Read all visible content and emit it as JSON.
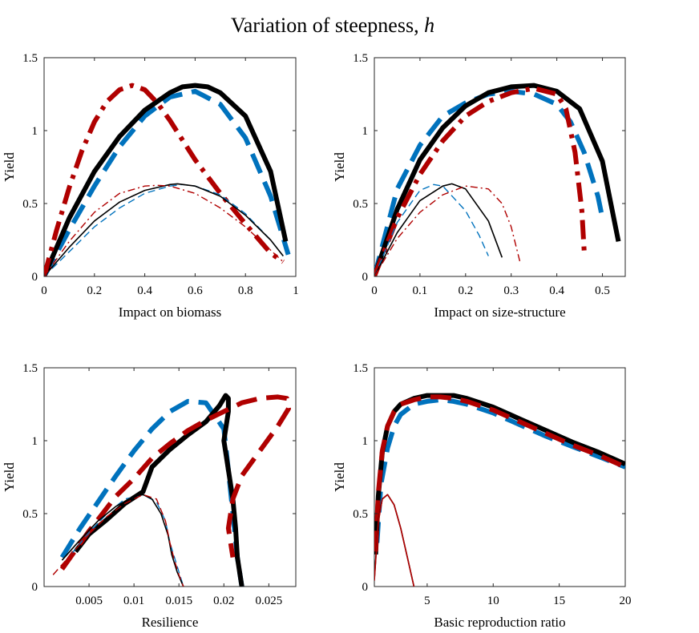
{
  "figure": {
    "title_prefix": "Variation of steepness, ",
    "title_symbol": "h"
  },
  "colors": {
    "black": "#000000",
    "blue": "#0072bd",
    "red": "#b00000"
  },
  "chart_data": [
    {
      "type": "line",
      "xlabel": "Impact on biomass",
      "ylabel": "Yield",
      "xlim": [
        0,
        1
      ],
      "ylim": [
        0,
        1.5
      ],
      "xticks": [
        0,
        0.2,
        0.4,
        0.6,
        0.8,
        1
      ],
      "xtick_labels": [
        "0",
        "0.2",
        "0.4",
        "0.6",
        "0.8",
        "1"
      ],
      "yticks": [
        0,
        0.5,
        1,
        1.5
      ],
      "ytick_labels": [
        "0",
        "0.5",
        "1",
        "1.5"
      ],
      "series": [
        {
          "name": "blue-dashed-thick",
          "color": "blue",
          "style": "dashed-thick",
          "x": [
            0,
            0.1,
            0.2,
            0.3,
            0.4,
            0.5,
            0.6,
            0.7,
            0.8,
            0.9,
            0.97
          ],
          "y": [
            0,
            0.32,
            0.62,
            0.89,
            1.1,
            1.23,
            1.27,
            1.18,
            0.95,
            0.55,
            0.15
          ]
        },
        {
          "name": "black-solid-thick",
          "color": "black",
          "style": "solid-thick",
          "x": [
            0,
            0.1,
            0.2,
            0.3,
            0.4,
            0.5,
            0.55,
            0.6,
            0.65,
            0.7,
            0.8,
            0.9,
            0.96
          ],
          "y": [
            0,
            0.4,
            0.72,
            0.96,
            1.14,
            1.26,
            1.3,
            1.31,
            1.3,
            1.26,
            1.1,
            0.72,
            0.24
          ]
        },
        {
          "name": "red-dashdot-thick",
          "color": "red",
          "style": "dashdot-thick",
          "x": [
            0,
            0.05,
            0.1,
            0.15,
            0.2,
            0.25,
            0.3,
            0.35,
            0.4,
            0.45,
            0.5,
            0.6,
            0.7,
            0.8,
            0.9,
            0.95
          ],
          "y": [
            0,
            0.32,
            0.61,
            0.86,
            1.06,
            1.2,
            1.28,
            1.31,
            1.28,
            1.19,
            1.07,
            0.8,
            0.57,
            0.36,
            0.16,
            0.1
          ]
        },
        {
          "name": "blue-dashed-thin",
          "color": "blue",
          "style": "dashed-thin",
          "x": [
            0,
            0.1,
            0.2,
            0.3,
            0.4,
            0.5,
            0.55,
            0.6,
            0.7,
            0.8,
            0.9,
            0.95
          ],
          "y": [
            0,
            0.17,
            0.34,
            0.47,
            0.57,
            0.62,
            0.63,
            0.62,
            0.56,
            0.43,
            0.25,
            0.14
          ]
        },
        {
          "name": "black-solid-thin",
          "color": "black",
          "style": "solid-thin",
          "x": [
            0,
            0.1,
            0.2,
            0.3,
            0.4,
            0.5,
            0.53,
            0.6,
            0.7,
            0.8,
            0.9,
            0.95
          ],
          "y": [
            0,
            0.2,
            0.38,
            0.51,
            0.59,
            0.63,
            0.635,
            0.62,
            0.55,
            0.42,
            0.25,
            0.14
          ]
        },
        {
          "name": "red-dashdot-thin",
          "color": "red",
          "style": "dashdot-thin",
          "x": [
            0,
            0.1,
            0.2,
            0.3,
            0.4,
            0.45,
            0.5,
            0.6,
            0.7,
            0.8,
            0.9,
            0.95
          ],
          "y": [
            0,
            0.24,
            0.44,
            0.57,
            0.62,
            0.625,
            0.62,
            0.57,
            0.47,
            0.34,
            0.18,
            0.1
          ]
        }
      ]
    },
    {
      "type": "line",
      "xlabel": "Impact on size-structure",
      "ylabel": "Yield",
      "xlim": [
        0,
        0.55
      ],
      "ylim": [
        0,
        1.5
      ],
      "xticks": [
        0,
        0.1,
        0.2,
        0.3,
        0.4,
        0.5
      ],
      "xtick_labels": [
        "0",
        "0.1",
        "0.2",
        "0.3",
        "0.4",
        "0.5"
      ],
      "yticks": [
        0,
        0.5,
        1,
        1.5
      ],
      "ytick_labels": [
        "0",
        "0.5",
        "1",
        "1.5"
      ],
      "series": [
        {
          "name": "blue-dashed-thick",
          "color": "blue",
          "style": "dashed-thick",
          "x": [
            0,
            0.05,
            0.1,
            0.15,
            0.2,
            0.25,
            0.3,
            0.35,
            0.4,
            0.43,
            0.46,
            0.49,
            0.5
          ],
          "y": [
            0,
            0.6,
            0.9,
            1.1,
            1.19,
            1.25,
            1.27,
            1.25,
            1.18,
            1.06,
            0.85,
            0.55,
            0.4
          ]
        },
        {
          "name": "black-solid-thick",
          "color": "black",
          "style": "solid-thick",
          "x": [
            0,
            0.05,
            0.1,
            0.15,
            0.2,
            0.25,
            0.3,
            0.35,
            0.4,
            0.45,
            0.5,
            0.535
          ],
          "y": [
            0,
            0.46,
            0.8,
            1.02,
            1.17,
            1.26,
            1.3,
            1.31,
            1.27,
            1.15,
            0.79,
            0.24
          ]
        },
        {
          "name": "red-dashdot-thick",
          "color": "red",
          "style": "dashdot-thick",
          "x": [
            0,
            0.05,
            0.1,
            0.15,
            0.2,
            0.25,
            0.3,
            0.35,
            0.4,
            0.42,
            0.44,
            0.455,
            0.46
          ],
          "y": [
            0,
            0.4,
            0.7,
            0.93,
            1.1,
            1.2,
            1.26,
            1.29,
            1.25,
            1.15,
            0.85,
            0.45,
            0.17
          ]
        },
        {
          "name": "blue-dashed-thin",
          "color": "blue",
          "style": "dashed-thin",
          "x": [
            0,
            0.05,
            0.1,
            0.13,
            0.15,
            0.2,
            0.23,
            0.25
          ],
          "y": [
            0,
            0.37,
            0.59,
            0.63,
            0.62,
            0.45,
            0.28,
            0.14
          ]
        },
        {
          "name": "black-solid-thin",
          "color": "black",
          "style": "solid-thin",
          "x": [
            0,
            0.05,
            0.1,
            0.15,
            0.17,
            0.2,
            0.25,
            0.28
          ],
          "y": [
            0,
            0.3,
            0.52,
            0.62,
            0.635,
            0.6,
            0.38,
            0.13
          ]
        },
        {
          "name": "red-dashdot-thin",
          "color": "red",
          "style": "dashdot-thin",
          "x": [
            0,
            0.05,
            0.1,
            0.15,
            0.2,
            0.25,
            0.28,
            0.3,
            0.32
          ],
          "y": [
            0,
            0.26,
            0.44,
            0.56,
            0.62,
            0.6,
            0.5,
            0.34,
            0.09
          ]
        }
      ]
    },
    {
      "type": "line",
      "xlabel": "Resilience",
      "ylabel": "Yield",
      "xlim": [
        0,
        0.028
      ],
      "ylim": [
        0,
        1.5
      ],
      "xticks": [
        0.005,
        0.01,
        0.015,
        0.02,
        0.025
      ],
      "xtick_labels": [
        "0.005",
        "0.01",
        "0.015",
        "0.02",
        "0.025"
      ],
      "yticks": [
        0,
        0.5,
        1,
        1.5
      ],
      "ytick_labels": [
        "0",
        "0.5",
        "1",
        "1.5"
      ],
      "series": [
        {
          "name": "blue-dashed-thick",
          "color": "blue",
          "style": "dashed-thick",
          "x": [
            0.002,
            0.004,
            0.006,
            0.008,
            0.01,
            0.012,
            0.014,
            0.016,
            0.018,
            0.02,
            0.0205,
            0.021,
            0.0215,
            0.022
          ],
          "y": [
            0.2,
            0.4,
            0.58,
            0.76,
            0.93,
            1.08,
            1.2,
            1.27,
            1.26,
            1.08,
            0.8,
            0.5,
            0.2,
            0
          ]
        },
        {
          "name": "black-solid-thick",
          "color": "black",
          "style": "solid-thick",
          "x": [
            0.0035,
            0.005,
            0.007,
            0.009,
            0.011,
            0.012,
            0.014,
            0.016,
            0.018,
            0.0195,
            0.0202,
            0.0205,
            0.0205,
            0.02,
            0.0205,
            0.021,
            0.0213,
            0.0215,
            0.022
          ],
          "y": [
            0.24,
            0.36,
            0.46,
            0.57,
            0.65,
            0.82,
            0.94,
            1.04,
            1.13,
            1.24,
            1.31,
            1.29,
            1.2,
            1.0,
            0.8,
            0.6,
            0.4,
            0.2,
            0
          ]
        },
        {
          "name": "red-dashed-thick",
          "color": "red",
          "style": "dashed-thick",
          "x": [
            0.002,
            0.005,
            0.008,
            0.01,
            0.012,
            0.014,
            0.016,
            0.018,
            0.02,
            0.022,
            0.024,
            0.026,
            0.027,
            0.0272,
            0.026,
            0.024,
            0.022,
            0.021,
            0.0205,
            0.021
          ],
          "y": [
            0.12,
            0.38,
            0.62,
            0.74,
            0.88,
            0.98,
            1.07,
            1.14,
            1.2,
            1.26,
            1.29,
            1.3,
            1.29,
            1.22,
            1.1,
            0.93,
            0.76,
            0.6,
            0.4,
            0.2
          ]
        },
        {
          "name": "blue-dashed-thin",
          "color": "blue",
          "style": "dashed-thin",
          "x": [
            0.003,
            0.005,
            0.007,
            0.009,
            0.011,
            0.0125,
            0.0135,
            0.014,
            0.015,
            0.0155
          ],
          "y": [
            0.22,
            0.37,
            0.5,
            0.6,
            0.63,
            0.58,
            0.45,
            0.3,
            0.1,
            0
          ]
        },
        {
          "name": "black-solid-thin",
          "color": "black",
          "style": "solid-thin",
          "x": [
            0.002,
            0.004,
            0.006,
            0.008,
            0.01,
            0.011,
            0.012,
            0.013,
            0.0138,
            0.0142,
            0.0148,
            0.0155
          ],
          "y": [
            0.18,
            0.32,
            0.45,
            0.55,
            0.62,
            0.63,
            0.6,
            0.5,
            0.35,
            0.22,
            0.1,
            0
          ]
        },
        {
          "name": "red-dashed-thin",
          "color": "red",
          "style": "dashed-thin",
          "x": [
            0.001,
            0.003,
            0.005,
            0.007,
            0.009,
            0.011,
            0.0125,
            0.0135,
            0.014,
            0.0145,
            0.015,
            0.0155
          ],
          "y": [
            0.08,
            0.22,
            0.36,
            0.48,
            0.57,
            0.63,
            0.6,
            0.45,
            0.3,
            0.18,
            0.08,
            0
          ]
        }
      ]
    },
    {
      "type": "line",
      "xlabel": "Basic reproduction ratio",
      "ylabel": "Yield",
      "xlim": [
        1,
        20
      ],
      "ylim": [
        0,
        1.5
      ],
      "xticks": [
        5,
        10,
        15,
        20
      ],
      "xtick_labels": [
        "5",
        "10",
        "15",
        "20"
      ],
      "yticks": [
        0,
        0.5,
        1,
        1.5
      ],
      "ytick_labels": [
        "0",
        "0.5",
        "1",
        "1.5"
      ],
      "series": [
        {
          "name": "blue-dashed-thick",
          "color": "blue",
          "style": "dashed-thick",
          "x": [
            1.2,
            1.5,
            2,
            2.5,
            3,
            4,
            5,
            6,
            7,
            8,
            10,
            12,
            14,
            16,
            18,
            20
          ],
          "y": [
            0.3,
            0.7,
            0.95,
            1.1,
            1.18,
            1.25,
            1.27,
            1.28,
            1.27,
            1.25,
            1.19,
            1.11,
            1.03,
            0.96,
            0.89,
            0.82
          ]
        },
        {
          "name": "black-solid-thick",
          "color": "black",
          "style": "solid-thick",
          "x": [
            1.1,
            1.3,
            1.6,
            2,
            2.5,
            3,
            4,
            5,
            6,
            7,
            8,
            10,
            12,
            14,
            16,
            18,
            20
          ],
          "y": [
            0.22,
            0.62,
            0.92,
            1.1,
            1.2,
            1.25,
            1.29,
            1.31,
            1.31,
            1.31,
            1.29,
            1.23,
            1.15,
            1.07,
            0.99,
            0.92,
            0.84
          ]
        },
        {
          "name": "red-dashed-thick",
          "color": "red",
          "style": "dashed-thick",
          "x": [
            1.1,
            1.3,
            1.6,
            2,
            2.5,
            3,
            4,
            5,
            6,
            7,
            8,
            10,
            12,
            14,
            16,
            18,
            20
          ],
          "y": [
            0.24,
            0.64,
            0.93,
            1.1,
            1.2,
            1.25,
            1.28,
            1.3,
            1.3,
            1.29,
            1.27,
            1.21,
            1.13,
            1.05,
            0.97,
            0.9,
            0.82
          ]
        },
        {
          "name": "black-solid-thin",
          "color": "black",
          "style": "solid-thin",
          "x": [
            1,
            1.3,
            1.6,
            2,
            2.5,
            3,
            3.5,
            4
          ],
          "y": [
            0.05,
            0.45,
            0.6,
            0.63,
            0.56,
            0.4,
            0.2,
            0
          ]
        },
        {
          "name": "red-solid-thin",
          "color": "red",
          "style": "solid-thin",
          "x": [
            1,
            1.3,
            1.6,
            2,
            2.5,
            3,
            3.5,
            4
          ],
          "y": [
            0.04,
            0.44,
            0.6,
            0.63,
            0.56,
            0.4,
            0.2,
            0
          ]
        }
      ]
    }
  ]
}
